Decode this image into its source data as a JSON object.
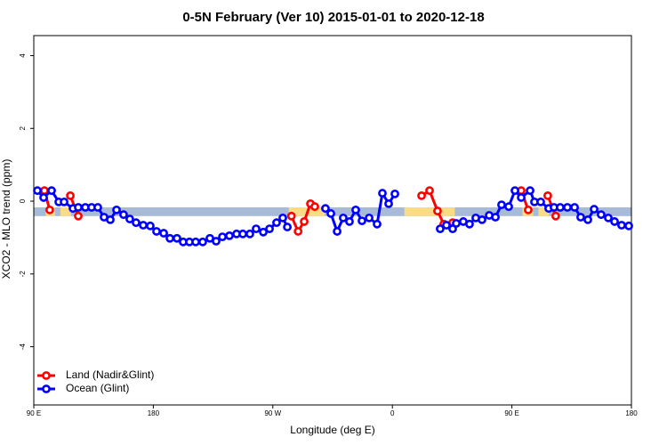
{
  "chart_data": {
    "type": "line",
    "title": "0-5N February (Ver 10)   2015-01-01 to 2020-12-18",
    "x_label": "Longitude (deg E)",
    "y_label": "XCO2 - MLO trend (ppm)",
    "xlim": [
      90,
      540
    ],
    "ylim": [
      -5.6,
      4.55
    ],
    "xticks": [
      {
        "value": 90,
        "label": "90 E"
      },
      180,
      {
        "value": 270,
        "label": "90 W"
      },
      {
        "value": 360,
        "label": "0"
      },
      {
        "value": 450,
        "label": "90 E"
      },
      {
        "value": 540,
        "label": "180"
      }
    ],
    "yticks": [
      -4,
      -2,
      0,
      2,
      4
    ],
    "legend": "bottom-left",
    "band": {
      "ylim": [
        -0.41,
        -0.17
      ],
      "ocean_color": "#a7bbd9",
      "land_color": "#fbdc86",
      "land_segments": [
        [
          99,
          106
        ],
        [
          110,
          118
        ],
        [
          282,
          309
        ],
        [
          369,
          407
        ],
        [
          458,
          466
        ],
        [
          470,
          478
        ]
      ]
    },
    "series": [
      {
        "name": "Land (Nadir&Glint)",
        "color": "#ff0000",
        "x": [
          98,
          102,
          110,
          117.5,
          123.5,
          200,
          284,
          289,
          293.6,
          298.3,
          301.6,
          340,
          382,
          388,
          394,
          398.7,
          405.4,
          430,
          457,
          462.3,
          470,
          477,
          483
        ],
        "values": [
          0.29,
          -0.24,
          null,
          0.15,
          -0.41,
          null,
          -0.41,
          -0.83,
          -0.56,
          -0.07,
          -0.15,
          null,
          0.15,
          0.29,
          -0.27,
          -0.63,
          -0.59,
          null,
          0.29,
          -0.24,
          null,
          0.15,
          -0.41
        ]
      },
      {
        "name": "Ocean (Glint)",
        "color": "#0000ff",
        "x": [
          92.7,
          97.4,
          103.4,
          108.8,
          112.8,
          119.5,
          123.5,
          128.8,
          133.5,
          138.2,
          142.9,
          147.6,
          152.3,
          157.6,
          162.3,
          167,
          172.4,
          177.7,
          182.4,
          187.8,
          192.5,
          197.8,
          202.5,
          207.2,
          211.9,
          217.2,
          222.6,
          227.3,
          232,
          237.3,
          242.7,
          247.4,
          252.7,
          257.4,
          262.8,
          267.5,
          272.8,
          277.5,
          280.9,
          295,
          309.6,
          313.7,
          318.4,
          323,
          327.7,
          332.4,
          337.1,
          342.5,
          348.5,
          352.5,
          357.2,
          361.9,
          380,
          396,
          400.7,
          405.4,
          408.1,
          413.4,
          418.1,
          422.8,
          427.5,
          432.9,
          437.6,
          442.2,
          447.6,
          452.3,
          457,
          463.7,
          467,
          471.7,
          477.7,
          481.7,
          486.4,
          491.8,
          497.2,
          501.8,
          507.2,
          511.9,
          517.2,
          522.6,
          527.3,
          532.6,
          538
        ],
        "values": [
          0.29,
          0.1,
          0.29,
          -0.02,
          -0.02,
          -0.2,
          -0.17,
          -0.17,
          -0.17,
          -0.17,
          -0.44,
          -0.51,
          -0.24,
          -0.37,
          -0.49,
          -0.59,
          -0.66,
          -0.68,
          -0.83,
          -0.88,
          -1.02,
          -1.02,
          -1.12,
          -1.12,
          -1.12,
          -1.12,
          -1.02,
          -1.1,
          -0.98,
          -0.95,
          -0.9,
          -0.9,
          -0.9,
          -0.76,
          -0.85,
          -0.76,
          -0.59,
          -0.46,
          -0.71,
          null,
          -0.2,
          -0.34,
          -0.83,
          -0.46,
          -0.56,
          -0.24,
          -0.54,
          -0.46,
          -0.63,
          0.22,
          -0.07,
          0.2,
          null,
          -0.76,
          -0.66,
          -0.76,
          -0.61,
          -0.56,
          -0.63,
          -0.46,
          -0.51,
          -0.39,
          -0.44,
          -0.1,
          -0.15,
          0.29,
          0.1,
          0.29,
          -0.02,
          -0.02,
          -0.2,
          -0.17,
          -0.17,
          -0.17,
          -0.17,
          -0.44,
          -0.51,
          -0.22,
          -0.37,
          -0.46,
          -0.56,
          -0.66,
          -0.68
        ]
      }
    ]
  }
}
